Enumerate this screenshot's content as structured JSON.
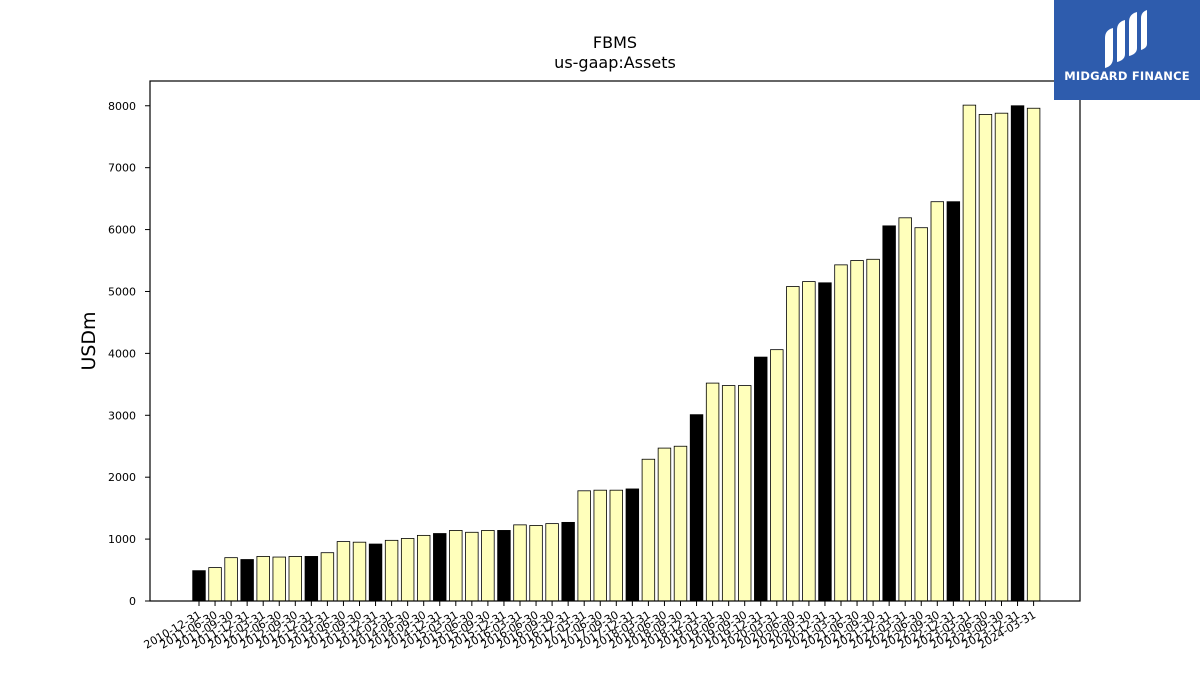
{
  "chart_data": {
    "type": "bar",
    "title": "FBMS",
    "subtitle": "us-gaap:Assets",
    "ylabel": "USDm",
    "xlabel": "",
    "ylim": [
      0,
      8400
    ],
    "yticks": [
      0,
      1000,
      2000,
      3000,
      4000,
      5000,
      6000,
      7000,
      8000
    ],
    "grid": false,
    "colors": {
      "quarterly": "#ffffbb",
      "annual": "#000000",
      "edge": "#000000"
    },
    "categories": [
      "2010-12-31",
      "2011-06-30",
      "2011-09-30",
      "2011-12-31",
      "2012-03-31",
      "2012-06-30",
      "2012-09-30",
      "2012-12-31",
      "2013-03-31",
      "2013-06-30",
      "2013-09-30",
      "2013-12-31",
      "2014-03-31",
      "2014-06-30",
      "2014-09-30",
      "2014-12-31",
      "2015-03-31",
      "2015-06-30",
      "2015-09-30",
      "2015-12-31",
      "2016-03-31",
      "2016-06-30",
      "2016-09-30",
      "2016-12-31",
      "2017-03-31",
      "2017-06-30",
      "2017-09-30",
      "2017-12-31",
      "2018-03-31",
      "2018-06-30",
      "2018-09-30",
      "2018-12-31",
      "2019-03-31",
      "2019-06-30",
      "2019-09-30",
      "2019-12-31",
      "2020-03-31",
      "2020-06-30",
      "2020-09-30",
      "2020-12-31",
      "2021-03-31",
      "2021-06-30",
      "2021-09-30",
      "2021-12-31",
      "2022-03-31",
      "2022-06-30",
      "2022-09-30",
      "2022-12-31",
      "2023-03-31",
      "2023-06-30",
      "2023-09-30",
      "2023-12-31",
      "2024-03-31"
    ],
    "values": [
      490,
      540,
      700,
      670,
      720,
      710,
      720,
      720,
      780,
      960,
      950,
      920,
      980,
      1010,
      1060,
      1090,
      1140,
      1110,
      1140,
      1140,
      1230,
      1220,
      1250,
      1270,
      1780,
      1790,
      1790,
      1810,
      2290,
      2470,
      2500,
      3010,
      3520,
      3480,
      3480,
      3940,
      4060,
      5080,
      5160,
      5140,
      5430,
      5500,
      5520,
      6060,
      6190,
      6030,
      6450,
      6450,
      8010,
      7860,
      7880,
      8000,
      7960
    ],
    "highlight": [
      true,
      false,
      false,
      true,
      false,
      false,
      false,
      true,
      false,
      false,
      false,
      true,
      false,
      false,
      false,
      true,
      false,
      false,
      false,
      true,
      false,
      false,
      false,
      true,
      false,
      false,
      false,
      true,
      false,
      false,
      false,
      true,
      false,
      false,
      false,
      true,
      false,
      false,
      false,
      true,
      false,
      false,
      false,
      true,
      false,
      false,
      false,
      true,
      false,
      false,
      false,
      true,
      false
    ]
  },
  "logo": {
    "text": "MIDGARD FINANCE"
  }
}
